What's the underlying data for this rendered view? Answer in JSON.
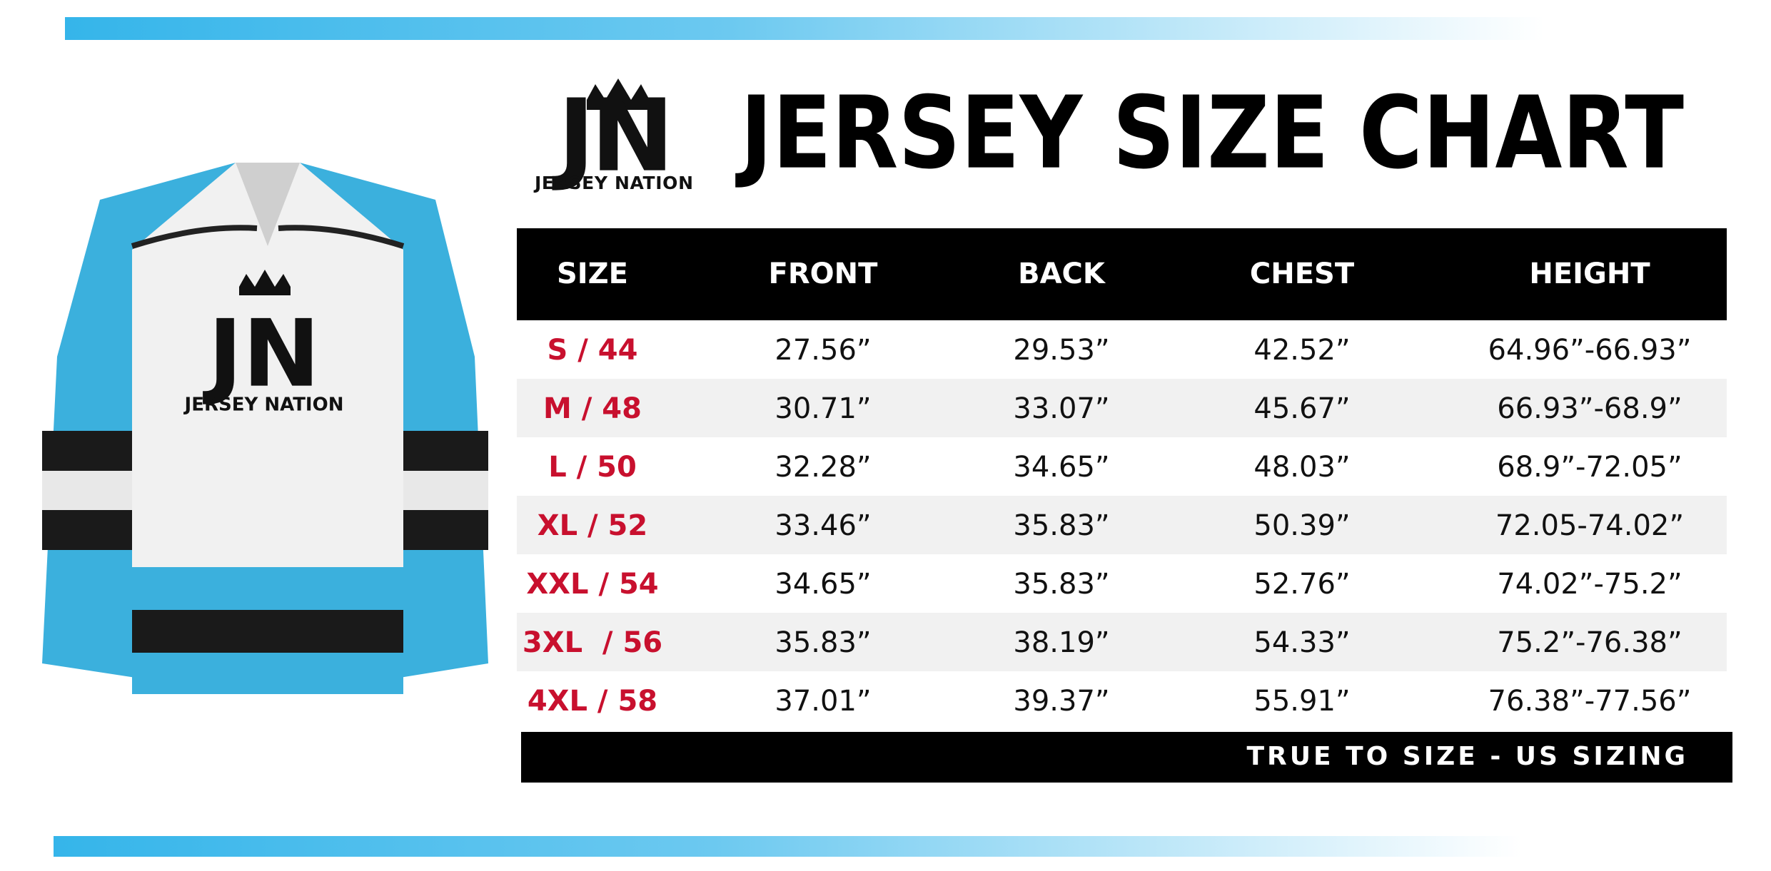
{
  "header": {
    "title": "JERSEY SIZE CHART"
  },
  "logo": {
    "initials": "JN",
    "name": "JERSEY NATION"
  },
  "table": {
    "columns": [
      "SIZE",
      "FRONT",
      "BACK",
      "CHEST",
      "HEIGHT"
    ],
    "rows": [
      [
        "S / 44",
        "27.56”",
        "29.53”",
        "42.52”",
        "64.96”-66.93”"
      ],
      [
        "M / 48",
        "30.71”",
        "33.07”",
        "45.67”",
        "66.93”-68.9”"
      ],
      [
        "L / 50",
        "32.28”",
        "34.65”",
        "48.03”",
        "68.9”-72.05”"
      ],
      [
        "XL / 52",
        "33.46”",
        "35.83”",
        "50.39”",
        "72.05-74.02”"
      ],
      [
        "XXL / 54",
        "34.65”",
        "35.83”",
        "52.76”",
        "74.02”-75.2”"
      ],
      [
        "3XL  / 56",
        "35.83”",
        "38.19”",
        "54.33”",
        "75.2”-76.38”"
      ],
      [
        "4XL / 58",
        "37.01”",
        "39.37”",
        "55.91”",
        "76.38”-77.56”"
      ]
    ],
    "footer": "TRUE TO SIZE - US SIZING"
  }
}
